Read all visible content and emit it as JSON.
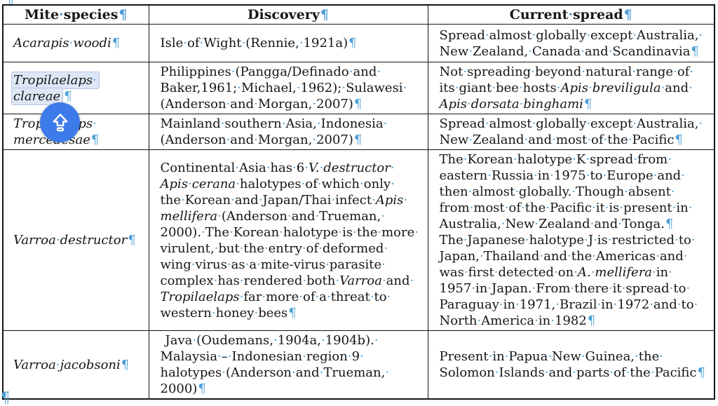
{
  "marks": {
    "pilcrow": "¶",
    "space_dot": "·",
    "color": "#4d9fd6"
  },
  "overlay": {
    "icon": "caps-lock-icon",
    "background": "#3d7bea",
    "glyph_color": "#ffffff"
  },
  "table": {
    "border_color": "#141414",
    "selection_fill": "#dde7f5",
    "selection_border": "#b5c6e0",
    "headers": [
      "Mite species",
      "Discovery",
      "Current spread"
    ],
    "rows": [
      {
        "species": {
          "paragraphs": [
            {
              "segments": [
                {
                  "t": "Acarapis woodi",
                  "i": true
                }
              ]
            }
          ]
        },
        "discovery": {
          "paragraphs": [
            {
              "segments": [
                {
                  "t": "Isle of Wight (Rennie, 1921a)"
                }
              ]
            }
          ]
        },
        "spread": {
          "paragraphs": [
            {
              "segments": [
                {
                  "t": "Spread almost globally except Australia, New Zealand, Canada and Scandinavia"
                }
              ]
            }
          ]
        }
      },
      {
        "species": {
          "paragraphs": [
            {
              "selected": true,
              "segments": [
                {
                  "t": "Tropilaelaps clareae",
                  "i": true
                }
              ]
            }
          ]
        },
        "discovery": {
          "paragraphs": [
            {
              "segments": [
                {
                  "t": "Philippines (Pangga/Definado and Baker,1961; Michael, 1962); Sulawesi (Anderson and Morgan, 2007)"
                }
              ]
            }
          ]
        },
        "spread": {
          "paragraphs": [
            {
              "segments": [
                {
                  "t": "Not spreading beyond natural range of its giant bee hosts "
                },
                {
                  "t": "Apis breviligula",
                  "i": true
                },
                {
                  "t": " and "
                },
                {
                  "t": "Apis dorsata binghami",
                  "i": true
                }
              ]
            }
          ]
        }
      },
      {
        "species": {
          "paragraphs": [
            {
              "segments": [
                {
                  "t": "Tropilaelaps mercedesae",
                  "i": true
                }
              ]
            }
          ]
        },
        "discovery": {
          "paragraphs": [
            {
              "segments": [
                {
                  "t": "Mainland southern Asia, Indonesia (Anderson and Morgan, 2007)"
                }
              ]
            }
          ]
        },
        "spread": {
          "paragraphs": [
            {
              "segments": [
                {
                  "t": "Spread almost globally except Australia, New Zealand and most of the Pacific"
                }
              ]
            }
          ]
        }
      },
      {
        "species": {
          "paragraphs": [
            {
              "segments": [
                {
                  "t": "Varroa destructor",
                  "i": true
                }
              ]
            }
          ]
        },
        "discovery": {
          "paragraphs": [
            {
              "segments": [
                {
                  "t": "Continental Asia has 6 "
                },
                {
                  "t": "V. destructor",
                  "i": true
                },
                {
                  "t": " "
                },
                {
                  "t": "Apis cerana",
                  "i": true
                },
                {
                  "t": " halotypes of which only the Korean and Japan/Thai infect "
                },
                {
                  "t": "Apis mellifera",
                  "i": true
                },
                {
                  "t": " (Anderson and Trueman, 2000). The Korean halotype is the more virulent, but the entry of deformed wing virus as a mite-virus parasite complex has rendered both "
                },
                {
                  "t": "Varroa",
                  "i": true
                },
                {
                  "t": " and "
                },
                {
                  "t": "Tropilaelaps",
                  "i": true
                },
                {
                  "t": " far more of a threat to western honey bees"
                }
              ]
            }
          ]
        },
        "spread": {
          "paragraphs": [
            {
              "segments": [
                {
                  "t": "The Korean halotype K spread from eastern Russia in 1975 to Europe and then almost globally. Though absent from most of the Pacific it is present in Australia, New Zealand and Tonga."
                }
              ]
            },
            {
              "segments": [
                {
                  "t": "The Japanese halotype J is restricted to Japan, Thailand and the Americas and was first detected on "
                },
                {
                  "t": "A. mellifera",
                  "i": true
                },
                {
                  "t": " in 1957 in Japan. From there it spread to Paraguay in 1971, Brazil in 1972 and to North America in 1982"
                }
              ]
            }
          ]
        }
      },
      {
        "species": {
          "paragraphs": [
            {
              "segments": [
                {
                  "t": "Varroa jacobsoni",
                  "i": true
                }
              ]
            }
          ]
        },
        "discovery": {
          "paragraphs": [
            {
              "indent": true,
              "segments": [
                {
                  "t": "Java (Oudemans, 1904a, 1904b). Malaysia – Indonesian region 9 halotypes (Anderson and Trueman, 2000)"
                }
              ]
            }
          ]
        },
        "spread": {
          "paragraphs": [
            {
              "segments": [
                {
                  "t": "Present in Papua New Guinea, the Solomon Islands and parts of the Pacific"
                }
              ]
            }
          ]
        }
      }
    ]
  }
}
